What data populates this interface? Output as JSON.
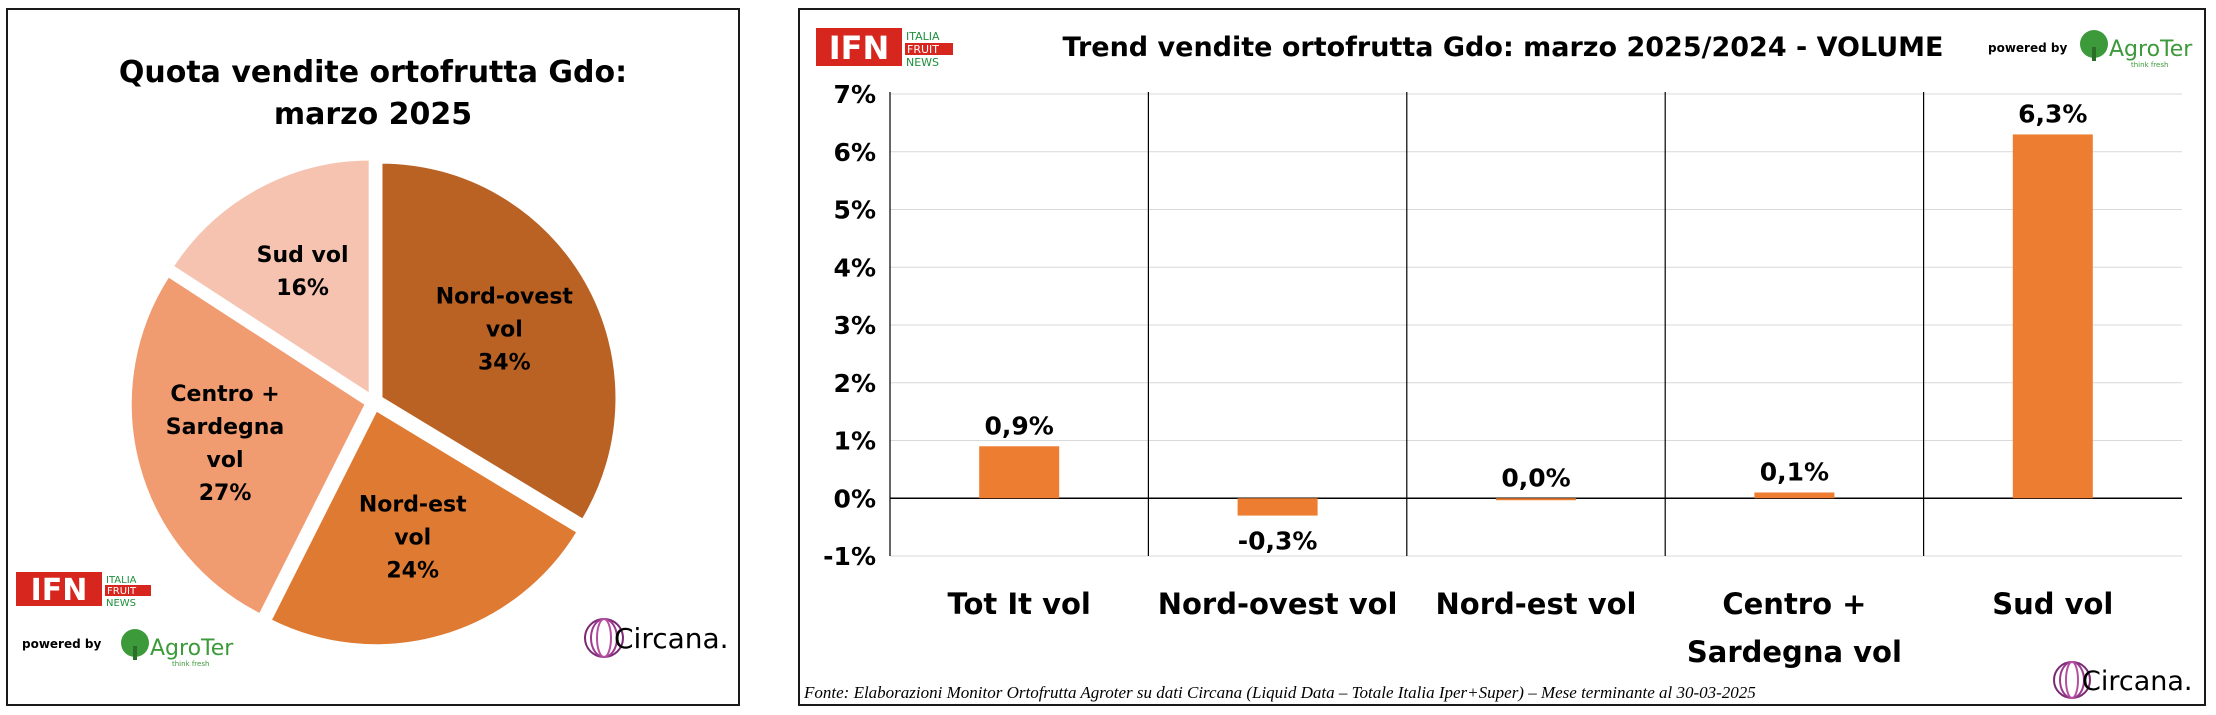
{
  "chart_data": [
    {
      "type": "pie",
      "title": "Quota vendite ortofrutta Gdo:",
      "subtitle": "marzo 2025",
      "slices": [
        {
          "label": [
            "Nord-ovest",
            "vol",
            "34%"
          ],
          "value": 34,
          "color": "#BA6124"
        },
        {
          "label": [
            "Nord-est",
            "vol",
            "24%"
          ],
          "value": 24,
          "color": "#DF7A33"
        },
        {
          "label": [
            "Centro +",
            "Sardegna",
            "vol",
            "27%"
          ],
          "value": 27,
          "color": "#F09B70"
        },
        {
          "label": [
            "Sud vol",
            "16%"
          ],
          "value": 16,
          "color": "#F6C3B1"
        }
      ]
    },
    {
      "type": "bar",
      "title": "Trend vendite ortofrutta Gdo: marzo 2025/2024 - VOLUME",
      "categories": [
        [
          "Tot It  vol"
        ],
        [
          "Nord-ovest vol"
        ],
        [
          "Nord-est vol"
        ],
        [
          "Centro +",
          "Sardegna vol"
        ],
        [
          "Sud vol"
        ]
      ],
      "values": [
        0.9,
        -0.3,
        0.0,
        0.1,
        6.3
      ],
      "value_labels": [
        "0,9%",
        "-0,3%",
        "0,0%",
        "0,1%",
        "6,3%"
      ],
      "ylim": [
        -1,
        7
      ],
      "yticks": [
        "-1%",
        "0%",
        "1%",
        "2%",
        "3%",
        "4%",
        "5%",
        "6%",
        "7%"
      ],
      "bar_color": "#ED7D31",
      "grid": true
    }
  ],
  "footnote": "Fonte: Elaborazioni Monitor Ortofrutta Agroter su dati Circana (Liquid Data – Totale Italia Iper+Super) – Mese terminante al 30-03-2025",
  "logos": {
    "ifn": {
      "main": "IFN",
      "sub1": "ITALIA",
      "sub2": "FRUIT",
      "sub3": "NEWS",
      "red": "#D7261E",
      "green": "#1E8F3C"
    },
    "agroter": {
      "powered": "powered by",
      "name": "AgroTer",
      "tagline": "think fresh",
      "color": "#3C9A3A"
    },
    "circana": {
      "name": "Circana.",
      "color": "#7A2A73"
    }
  }
}
